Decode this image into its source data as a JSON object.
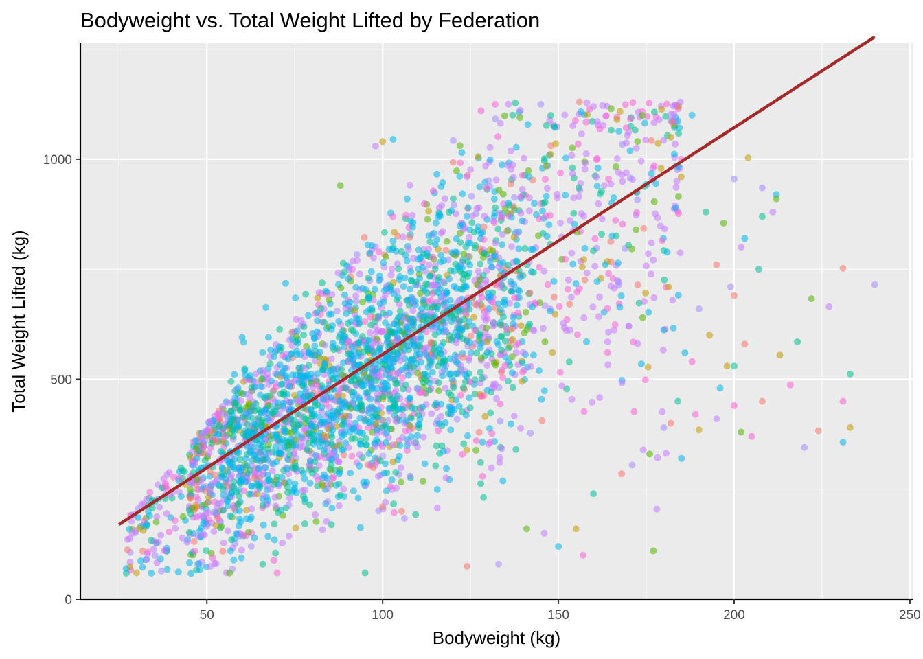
{
  "chart_data": {
    "type": "scatter",
    "title": "Bodyweight vs. Total Weight Lifted by Federation",
    "xlabel": "Bodyweight (kg)",
    "ylabel": "Total Weight Lifted (kg)",
    "xlim": [
      14,
      251
    ],
    "ylim": [
      0,
      1265
    ],
    "x_ticks": [
      50,
      100,
      150,
      200,
      250
    ],
    "x_tick_labels": [
      "50",
      "100",
      "150",
      "200",
      "250"
    ],
    "y_ticks": [
      0,
      500,
      1000
    ],
    "y_tick_labels": [
      "0",
      "500",
      "1000"
    ],
    "grid": true,
    "legend": "none",
    "series_colors": [
      "#F8766D",
      "#C49A00",
      "#53B400",
      "#00C094",
      "#00B6EB",
      "#A58AFF",
      "#FB61D7",
      "#C77CFF"
    ],
    "trend_line": {
      "color": "#A52A2A",
      "points": [
        [
          25,
          170
        ],
        [
          240,
          1278
        ]
      ]
    },
    "outliers": [
      [
        240,
        715
      ],
      [
        231,
        752
      ],
      [
        233,
        512
      ],
      [
        231,
        450
      ],
      [
        233,
        390
      ],
      [
        231,
        357
      ],
      [
        227,
        665
      ],
      [
        222,
        683
      ],
      [
        220,
        345
      ],
      [
        224,
        383
      ],
      [
        218,
        585
      ],
      [
        216,
        487
      ],
      [
        213,
        555
      ],
      [
        212,
        920
      ],
      [
        211,
        880
      ],
      [
        212,
        910
      ],
      [
        208,
        935
      ],
      [
        208,
        450
      ],
      [
        207,
        750
      ],
      [
        205,
        370
      ],
      [
        204,
        1003
      ],
      [
        203,
        820
      ],
      [
        202,
        800
      ],
      [
        202,
        380
      ],
      [
        200,
        955
      ],
      [
        200,
        690
      ],
      [
        200,
        530
      ],
      [
        200,
        440
      ],
      [
        198,
        530
      ],
      [
        196,
        480
      ],
      [
        195,
        410
      ],
      [
        197,
        855
      ],
      [
        199,
        710
      ],
      [
        203,
        580
      ],
      [
        208,
        870
      ],
      [
        189,
        420
      ],
      [
        190,
        385
      ],
      [
        185,
        320
      ],
      [
        178,
        205
      ],
      [
        177,
        110
      ],
      [
        171,
        305
      ],
      [
        168,
        285
      ],
      [
        160,
        240
      ],
      [
        157,
        100
      ],
      [
        155,
        160
      ],
      [
        150,
        120
      ],
      [
        146,
        150
      ],
      [
        141,
        160
      ],
      [
        133,
        80
      ],
      [
        124,
        75
      ],
      [
        95,
        60
      ],
      [
        70,
        60
      ],
      [
        30,
        60
      ],
      [
        27,
        70
      ],
      [
        48,
        190
      ],
      [
        176,
        330
      ],
      [
        180,
        390
      ],
      [
        182,
        400
      ],
      [
        184,
        450
      ],
      [
        188,
        540
      ],
      [
        193,
        600
      ],
      [
        186,
        560
      ],
      [
        170,
        620
      ],
      [
        174,
        640
      ],
      [
        190,
        660
      ],
      [
        195,
        760
      ],
      [
        192,
        880
      ],
      [
        185,
        1000
      ],
      [
        182,
        1050
      ],
      [
        188,
        1100
      ],
      [
        160,
        1120
      ],
      [
        165,
        1115
      ],
      [
        145,
        1125
      ],
      [
        156,
        1130
      ],
      [
        137,
        1100
      ],
      [
        128,
        1110
      ],
      [
        100,
        1040
      ],
      [
        103,
        1045
      ],
      [
        98,
        1030
      ],
      [
        88,
        940
      ]
    ]
  }
}
